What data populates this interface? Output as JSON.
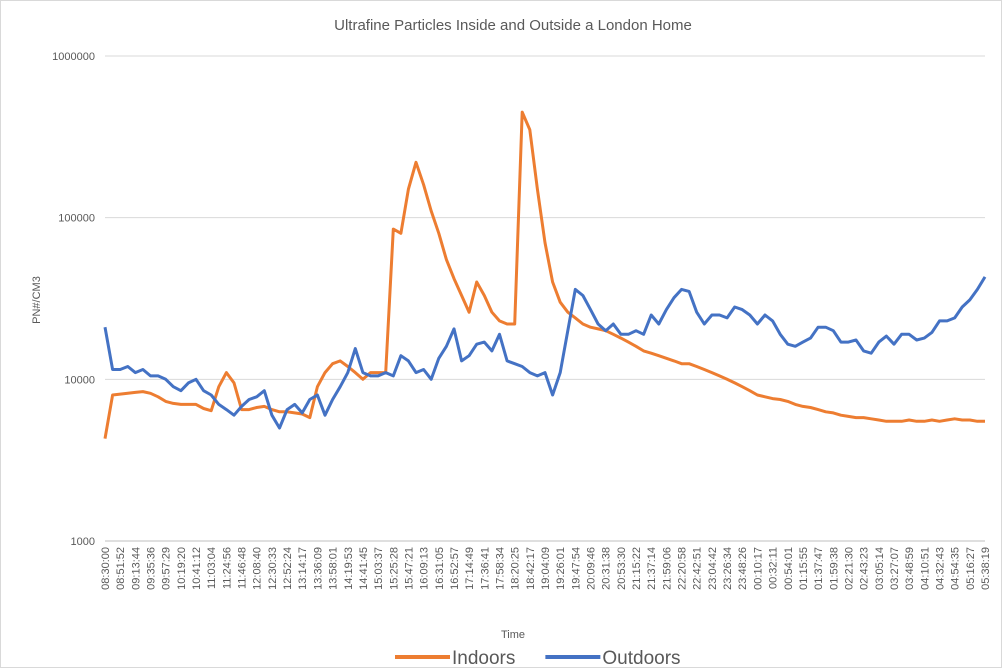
{
  "chart_data": {
    "type": "line",
    "title": "Ultrafine Particles Inside and Outside a London Home",
    "x_label": "Time",
    "y_label": "PN#/CM3",
    "log_y": true,
    "grid": true,
    "legend": "bottom",
    "ylim": [
      1000,
      1000000
    ],
    "yticks": [
      1000,
      10000,
      100000,
      1000000
    ],
    "categories": [
      "08:30:00",
      null,
      "08:51:52",
      null,
      "09:13:44",
      null,
      "09:35:36",
      null,
      "09:57:29",
      null,
      "10:19:20",
      null,
      "10:41:12",
      null,
      "11:03:04",
      null,
      "11:24:56",
      null,
      "11:46:48",
      null,
      "12:08:40",
      null,
      "12:30:33",
      null,
      "12:52:24",
      null,
      "13:14:17",
      null,
      "13:36:09",
      null,
      "13:58:01",
      null,
      "14:19:53",
      null,
      "14:41:45",
      null,
      "15:03:37",
      null,
      "15:25:28",
      null,
      "15:47:21",
      null,
      "16:09:13",
      null,
      "16:31:05",
      null,
      "16:52:57",
      null,
      "17:14:49",
      null,
      "17:36:41",
      null,
      "17:58:34",
      null,
      "18:20:25",
      null,
      "18:42:17",
      null,
      "19:04:09",
      null,
      "19:26:01",
      null,
      "19:47:54",
      null,
      "20:09:46",
      null,
      "20:31:38",
      null,
      "20:53:30",
      null,
      "21:15:22",
      null,
      "21:37:14",
      null,
      "21:59:06",
      null,
      "22:20:58",
      null,
      "22:42:51",
      null,
      "23:04:42",
      null,
      "23:26:34",
      null,
      "23:48:26",
      null,
      "00:10:17",
      null,
      "00:32:11",
      null,
      "00:54:01",
      null,
      "01:15:55",
      null,
      "01:37:47",
      null,
      "01:59:38",
      null,
      "02:21:30",
      null,
      "02:43:23",
      null,
      "03:05:14",
      null,
      "03:27:07",
      null,
      "03:48:59",
      null,
      "04:10:51",
      null,
      "04:32:43",
      null,
      "04:54:35",
      null,
      "05:16:27",
      null,
      "05:38:19"
    ],
    "series": [
      {
        "name": "Indoors",
        "color": "#ed7d31",
        "values": [
          4300,
          8000,
          8100,
          8200,
          8300,
          8400,
          8200,
          7800,
          7300,
          7100,
          7000,
          7000,
          7000,
          6600,
          6400,
          9000,
          11000,
          9500,
          6500,
          6500,
          6700,
          6800,
          6500,
          6300,
          6300,
          6200,
          6100,
          5800,
          9000,
          11000,
          12500,
          13000,
          12000,
          11000,
          10000,
          11000,
          11000,
          11000,
          85000,
          80000,
          150000,
          220000,
          160000,
          110000,
          80000,
          55000,
          42000,
          33000,
          26000,
          40000,
          33000,
          26000,
          23000,
          22000,
          22000,
          450000,
          350000,
          150000,
          70000,
          40000,
          30000,
          26000,
          24000,
          22000,
          21000,
          20500,
          20000,
          19000,
          18000,
          17000,
          16000,
          15000,
          14500,
          14000,
          13500,
          13000,
          12500,
          12500,
          12000,
          11500,
          11000,
          10500,
          10000,
          9500,
          9000,
          8500,
          8000,
          7800,
          7600,
          7500,
          7300,
          7000,
          6800,
          6700,
          6500,
          6300,
          6200,
          6000,
          5900,
          5800,
          5800,
          5700,
          5600,
          5500,
          5500,
          5500,
          5600,
          5500,
          5500,
          5600,
          5500,
          5600,
          5700,
          5600,
          5600,
          5500,
          5500
        ]
      },
      {
        "name": "Outdoors",
        "color": "#4472c4",
        "values": [
          21000,
          11500,
          11500,
          12000,
          11000,
          11500,
          10500,
          10500,
          10000,
          9000,
          8500,
          9500,
          10000,
          8500,
          8000,
          7000,
          6500,
          6000,
          6800,
          7500,
          7800,
          8500,
          6000,
          5000,
          6500,
          7000,
          6200,
          7500,
          8000,
          6000,
          7500,
          9000,
          11000,
          15500,
          11000,
          10500,
          10500,
          11000,
          10500,
          14000,
          13000,
          11000,
          11500,
          10000,
          13500,
          16000,
          20500,
          13000,
          14000,
          16500,
          17000,
          15000,
          19000,
          13000,
          12500,
          12000,
          11000,
          10500,
          11000,
          8000,
          11000,
          20000,
          36000,
          33000,
          27000,
          22000,
          20000,
          22000,
          19000,
          19000,
          20000,
          19000,
          25000,
          22000,
          27000,
          32000,
          36000,
          35000,
          26000,
          22000,
          25000,
          25000,
          24000,
          28000,
          27000,
          25000,
          22000,
          25000,
          23000,
          19000,
          16500,
          16000,
          17000,
          18000,
          21000,
          21000,
          20000,
          17000,
          17000,
          17500,
          15000,
          14500,
          17000,
          18500,
          16500,
          19000,
          19000,
          17500,
          18000,
          19500,
          23000,
          23000,
          24000,
          28000,
          31000,
          36000,
          43000
        ]
      }
    ]
  }
}
